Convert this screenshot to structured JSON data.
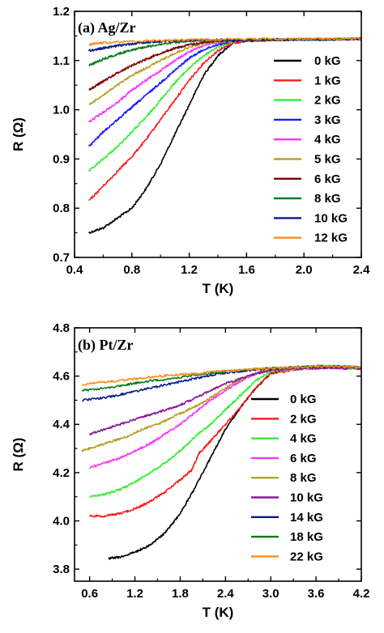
{
  "chart_data": [
    {
      "type": "line",
      "title": "(a) Ag/Zr",
      "xlabel": "T (K)",
      "ylabel": "R (Ω)",
      "xlim": [
        0.4,
        2.4
      ],
      "ylim": [
        0.7,
        1.2
      ],
      "xticks": [
        "0.4",
        "0.8",
        "1.2",
        "1.6",
        "2.0",
        "2.4"
      ],
      "yticks": [
        "0.7",
        "0.8",
        "0.9",
        "1.0",
        "1.1",
        "1.2"
      ],
      "legend_position": "right",
      "series": [
        {
          "name": "0 kG",
          "color": "#000000",
          "x": [
            0.5,
            0.6,
            0.7,
            0.8,
            0.9,
            1.0,
            1.1,
            1.2,
            1.3,
            1.4,
            1.5,
            1.6,
            1.8,
            2.0,
            2.2,
            2.4
          ],
          "y": [
            0.75,
            0.76,
            0.78,
            0.8,
            0.84,
            0.89,
            0.95,
            1.01,
            1.07,
            1.11,
            1.135,
            1.14,
            1.142,
            1.143,
            1.143,
            1.144
          ]
        },
        {
          "name": "1 kG",
          "color": "#ff1a1a",
          "x": [
            0.5,
            0.6,
            0.7,
            0.8,
            0.9,
            1.0,
            1.1,
            1.2,
            1.3,
            1.4,
            1.5,
            1.6,
            1.8,
            2.0,
            2.2,
            2.4
          ],
          "y": [
            0.815,
            0.845,
            0.875,
            0.905,
            0.94,
            0.98,
            1.02,
            1.06,
            1.095,
            1.12,
            1.135,
            1.14,
            1.142,
            1.143,
            1.143,
            1.144
          ]
        },
        {
          "name": "2 kG",
          "color": "#33ee33",
          "x": [
            0.5,
            0.6,
            0.7,
            0.8,
            0.9,
            1.0,
            1.1,
            1.2,
            1.3,
            1.4,
            1.5,
            1.6,
            1.8,
            2.0,
            2.2,
            2.4
          ],
          "y": [
            0.875,
            0.9,
            0.925,
            0.955,
            0.985,
            1.02,
            1.055,
            1.085,
            1.11,
            1.128,
            1.138,
            1.141,
            1.142,
            1.143,
            1.143,
            1.144
          ]
        },
        {
          "name": "3 kG",
          "color": "#1a1aff",
          "x": [
            0.5,
            0.6,
            0.7,
            0.8,
            0.9,
            1.0,
            1.1,
            1.2,
            1.3,
            1.4,
            1.5,
            1.6,
            1.8,
            2.0,
            2.2,
            2.4
          ],
          "y": [
            0.925,
            0.955,
            0.98,
            1.005,
            1.03,
            1.055,
            1.08,
            1.105,
            1.122,
            1.133,
            1.139,
            1.141,
            1.142,
            1.143,
            1.143,
            1.144
          ]
        },
        {
          "name": "4 kG",
          "color": "#ff33ff",
          "x": [
            0.5,
            0.6,
            0.7,
            0.8,
            0.9,
            1.0,
            1.1,
            1.2,
            1.3,
            1.4,
            1.5,
            1.6,
            1.8,
            2.0,
            2.2,
            2.4
          ],
          "y": [
            0.975,
            0.995,
            1.015,
            1.04,
            1.06,
            1.08,
            1.1,
            1.118,
            1.13,
            1.137,
            1.14,
            1.141,
            1.142,
            1.143,
            1.143,
            1.144
          ]
        },
        {
          "name": "5 kG",
          "color": "#b3a32a",
          "x": [
            0.5,
            0.6,
            0.7,
            0.8,
            0.9,
            1.0,
            1.1,
            1.2,
            1.3,
            1.4,
            1.6,
            1.8,
            2.0,
            2.2,
            2.4
          ],
          "y": [
            1.01,
            1.03,
            1.05,
            1.07,
            1.085,
            1.1,
            1.115,
            1.127,
            1.135,
            1.139,
            1.141,
            1.142,
            1.143,
            1.143,
            1.144
          ]
        },
        {
          "name": "6 kG",
          "color": "#800000",
          "x": [
            0.5,
            0.6,
            0.7,
            0.8,
            0.9,
            1.0,
            1.1,
            1.2,
            1.3,
            1.4,
            1.6,
            1.8,
            2.0,
            2.2,
            2.4
          ],
          "y": [
            1.04,
            1.058,
            1.075,
            1.09,
            1.103,
            1.115,
            1.125,
            1.132,
            1.137,
            1.14,
            1.141,
            1.142,
            1.143,
            1.143,
            1.144
          ]
        },
        {
          "name": "8 kG",
          "color": "#0a7a1a",
          "x": [
            0.5,
            0.6,
            0.7,
            0.8,
            0.9,
            1.0,
            1.1,
            1.2,
            1.4,
            1.6,
            1.8,
            2.0,
            2.2,
            2.4
          ],
          "y": [
            1.09,
            1.103,
            1.113,
            1.122,
            1.128,
            1.133,
            1.137,
            1.139,
            1.141,
            1.142,
            1.142,
            1.143,
            1.143,
            1.144
          ]
        },
        {
          "name": "10 kG",
          "color": "#0a1a8a",
          "x": [
            0.5,
            0.6,
            0.7,
            0.8,
            0.9,
            1.0,
            1.2,
            1.4,
            1.6,
            1.8,
            2.0,
            2.2,
            2.4
          ],
          "y": [
            1.12,
            1.125,
            1.13,
            1.134,
            1.137,
            1.139,
            1.141,
            1.142,
            1.142,
            1.143,
            1.143,
            1.143,
            1.144
          ]
        },
        {
          "name": "12 kG",
          "color": "#ff8c1a",
          "x": [
            0.5,
            0.6,
            0.8,
            1.0,
            1.2,
            1.4,
            1.6,
            1.8,
            2.0,
            2.2,
            2.4
          ],
          "y": [
            1.133,
            1.136,
            1.139,
            1.141,
            1.142,
            1.143,
            1.144,
            1.144,
            1.144,
            1.144,
            1.145
          ]
        }
      ]
    },
    {
      "type": "line",
      "title": "(b) Pt/Zr",
      "xlabel": "T (K)",
      "ylabel": "R (Ω)",
      "xlim": [
        0.4,
        4.2
      ],
      "ylim": [
        3.75,
        4.8
      ],
      "xticks": [
        "0.6",
        "1.2",
        "1.8",
        "2.4",
        "3.0",
        "3.6",
        "4.2"
      ],
      "yticks": [
        "3.8",
        "4.0",
        "4.2",
        "4.4",
        "4.6",
        "4.8"
      ],
      "legend_position": "right",
      "series": [
        {
          "name": "0 kG",
          "color": "#000000",
          "x": [
            0.85,
            1.0,
            1.2,
            1.4,
            1.6,
            1.8,
            2.0,
            2.2,
            2.4,
            2.6,
            2.8,
            3.0,
            3.2,
            3.6,
            4.0,
            4.2
          ],
          "y": [
            3.845,
            3.85,
            3.87,
            3.9,
            3.95,
            4.03,
            4.14,
            4.26,
            4.38,
            4.47,
            4.55,
            4.61,
            4.63,
            4.64,
            4.635,
            4.63
          ]
        },
        {
          "name": "2  kG",
          "color": "#ff1a1a",
          "x": [
            0.6,
            0.8,
            1.0,
            1.2,
            1.4,
            1.6,
            1.8,
            1.95,
            2.05,
            2.2,
            2.4,
            2.6,
            2.8,
            3.0,
            3.4,
            3.8,
            4.2
          ],
          "y": [
            4.02,
            4.02,
            4.03,
            4.05,
            4.08,
            4.12,
            4.17,
            4.21,
            4.28,
            4.33,
            4.4,
            4.47,
            4.55,
            4.61,
            4.63,
            4.635,
            4.63
          ]
        },
        {
          "name": "4  kG",
          "color": "#33ee33",
          "x": [
            0.6,
            0.8,
            1.0,
            1.2,
            1.4,
            1.6,
            1.8,
            2.0,
            2.2,
            2.4,
            2.6,
            2.8,
            3.0,
            3.4,
            3.8,
            4.2
          ],
          "y": [
            4.1,
            4.11,
            4.13,
            4.16,
            4.2,
            4.24,
            4.29,
            4.35,
            4.4,
            4.46,
            4.52,
            4.58,
            4.62,
            4.63,
            4.635,
            4.63
          ]
        },
        {
          "name": "6  kG",
          "color": "#ff33ff",
          "x": [
            0.6,
            0.8,
            1.0,
            1.2,
            1.4,
            1.6,
            1.8,
            2.0,
            2.2,
            2.4,
            2.6,
            2.8,
            3.0,
            3.4,
            3.8,
            4.2
          ],
          "y": [
            4.22,
            4.24,
            4.26,
            4.29,
            4.32,
            4.36,
            4.4,
            4.45,
            4.5,
            4.54,
            4.58,
            4.61,
            4.625,
            4.63,
            4.635,
            4.63
          ]
        },
        {
          "name": "8  kG",
          "color": "#b3a32a",
          "x": [
            0.5,
            0.7,
            0.9,
            1.1,
            1.3,
            1.5,
            1.7,
            1.9,
            2.1,
            2.3,
            2.5,
            2.7,
            2.9,
            3.2,
            3.6,
            4.0,
            4.2
          ],
          "y": [
            4.29,
            4.31,
            4.33,
            4.35,
            4.38,
            4.4,
            4.43,
            4.46,
            4.49,
            4.53,
            4.57,
            4.6,
            4.62,
            4.63,
            4.635,
            4.635,
            4.63
          ]
        },
        {
          "name": "10  kG",
          "color": "#8a1a9a",
          "x": [
            0.6,
            0.8,
            1.0,
            1.2,
            1.4,
            1.6,
            1.8,
            2.0,
            2.2,
            2.4,
            2.6,
            2.8,
            3.0,
            3.4,
            3.8,
            4.2
          ],
          "y": [
            4.36,
            4.38,
            4.4,
            4.42,
            4.44,
            4.46,
            4.48,
            4.51,
            4.54,
            4.57,
            4.59,
            4.61,
            4.625,
            4.63,
            4.635,
            4.63
          ]
        },
        {
          "name": "14  kG",
          "color": "#0a1a8a",
          "x": [
            0.5,
            0.8,
            1.1,
            1.4,
            1.7,
            2.0,
            2.3,
            2.6,
            2.9,
            3.2,
            3.6,
            4.0,
            4.2
          ],
          "y": [
            4.5,
            4.51,
            4.53,
            4.55,
            4.57,
            4.59,
            4.61,
            4.62,
            4.63,
            4.635,
            4.64,
            4.64,
            4.635
          ]
        },
        {
          "name": "18  kG",
          "color": "#0a7a1a",
          "x": [
            0.5,
            0.8,
            1.1,
            1.4,
            1.7,
            2.0,
            2.3,
            2.6,
            2.9,
            3.2,
            3.6,
            4.0,
            4.2
          ],
          "y": [
            4.54,
            4.55,
            4.565,
            4.58,
            4.59,
            4.605,
            4.615,
            4.625,
            4.63,
            4.635,
            4.64,
            4.64,
            4.635
          ]
        },
        {
          "name": "22  kG",
          "color": "#ff8c1a",
          "x": [
            0.5,
            0.8,
            1.1,
            1.4,
            1.7,
            2.0,
            2.3,
            2.6,
            2.9,
            3.2,
            3.6,
            4.0,
            4.2
          ],
          "y": [
            4.565,
            4.575,
            4.585,
            4.595,
            4.605,
            4.61,
            4.62,
            4.625,
            4.63,
            4.635,
            4.64,
            4.64,
            4.635
          ]
        }
      ]
    }
  ]
}
